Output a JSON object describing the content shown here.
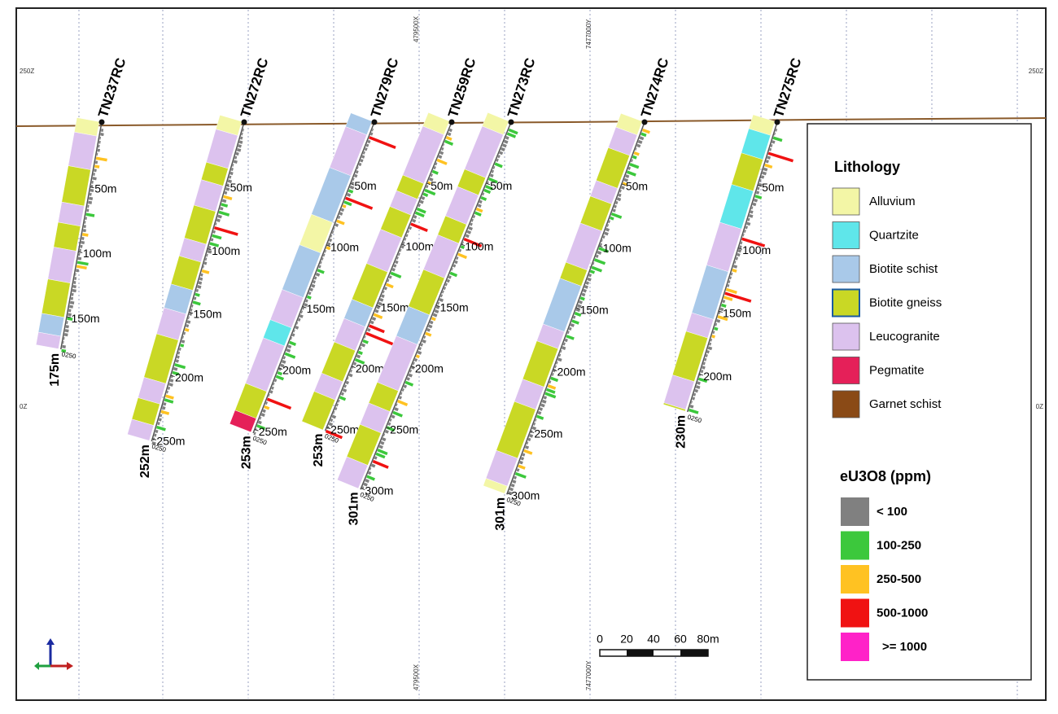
{
  "section_labels": {
    "z_top_left": "250Z",
    "z_top_right": "250Z",
    "z_mid_left": "0Z",
    "z_mid_right": "0Z",
    "x_top": "479500X",
    "y_top": "7477000Y",
    "x_bottom": "479500X",
    "y_bottom": "7477000Y"
  },
  "gauge_label": "0250",
  "holes": [
    {
      "name": "TN237RC",
      "end_depth": {
        "value": 175,
        "label": "175m"
      },
      "markers": [
        {
          "value": 50,
          "label": "50m"
        },
        {
          "value": 100,
          "label": "100m"
        },
        {
          "value": 150,
          "label": "150m"
        }
      ]
    },
    {
      "name": "TN272RC",
      "end_depth": {
        "value": 252,
        "label": "252m"
      },
      "markers": [
        {
          "value": 50,
          "label": "50m"
        },
        {
          "value": 100,
          "label": "100m"
        },
        {
          "value": 150,
          "label": "150m"
        },
        {
          "value": 200,
          "label": "200m"
        },
        {
          "value": 250,
          "label": "250m"
        }
      ]
    },
    {
      "name": "TN279RC",
      "end_depth": {
        "value": 253,
        "label": "253m"
      },
      "markers": [
        {
          "value": 50,
          "label": "50m"
        },
        {
          "value": 100,
          "label": "100m"
        },
        {
          "value": 150,
          "label": "150m"
        },
        {
          "value": 200,
          "label": "200m"
        },
        {
          "value": 250,
          "label": "250m"
        }
      ]
    },
    {
      "name": "TN259RC",
      "end_depth": {
        "value": 253,
        "label": "253m"
      },
      "markers": [
        {
          "value": 50,
          "label": "50m"
        },
        {
          "value": 100,
          "label": "100m"
        },
        {
          "value": 150,
          "label": "150m"
        },
        {
          "value": 200,
          "label": "200m"
        },
        {
          "value": 250,
          "label": "250m"
        }
      ]
    },
    {
      "name": "TN273RC",
      "end_depth": {
        "value": 301,
        "label": "301m"
      },
      "markers": [
        {
          "value": 50,
          "label": "50m"
        },
        {
          "value": 100,
          "label": "100m"
        },
        {
          "value": 150,
          "label": "150m"
        },
        {
          "value": 200,
          "label": "200m"
        },
        {
          "value": 250,
          "label": "250m"
        },
        {
          "value": 300,
          "label": "300m"
        }
      ]
    },
    {
      "name": "TN274RC",
      "end_depth": {
        "value": 301,
        "label": "301m"
      },
      "markers": [
        {
          "value": 50,
          "label": "50m"
        },
        {
          "value": 100,
          "label": "100m"
        },
        {
          "value": 150,
          "label": "150m"
        },
        {
          "value": 200,
          "label": "200m"
        },
        {
          "value": 250,
          "label": "250m"
        },
        {
          "value": 300,
          "label": "300m"
        }
      ]
    },
    {
      "name": "TN275RC",
      "end_depth": {
        "value": 230,
        "label": "230m"
      },
      "markers": [
        {
          "value": 50,
          "label": "50m"
        },
        {
          "value": 100,
          "label": "100m"
        },
        {
          "value": 150,
          "label": "150m"
        },
        {
          "value": 200,
          "label": "200m"
        }
      ]
    }
  ],
  "legend": {
    "lithology_title": "Lithology",
    "lithology": [
      {
        "label": "Alluvium",
        "color": "#f3f6a6"
      },
      {
        "label": "Quartzite",
        "color": "#5fe6ea"
      },
      {
        "label": "Biotite schist",
        "color": "#a9c9e9"
      },
      {
        "label": "Biotite gneiss",
        "color": "#c9d825"
      },
      {
        "label": "Leucogranite",
        "color": "#dcc2ee"
      },
      {
        "label": "Pegmatite",
        "color": "#e52059"
      },
      {
        "label": "Garnet schist",
        "color": "#8a4a16"
      }
    ],
    "grade_title": "eU3O8 (ppm)",
    "grades": [
      {
        "label": "< 100",
        "color": "#808080"
      },
      {
        "label": "100-250",
        "color": "#3cc83c"
      },
      {
        "label": "250-500",
        "color": "#ffc222"
      },
      {
        "label": "500-1000",
        "color": "#f01212"
      },
      {
        "label": ">= 1000",
        "color": "#ff22c8"
      }
    ]
  },
  "scale_bar": [
    "0",
    "20",
    "40",
    "60",
    "80m"
  ]
}
